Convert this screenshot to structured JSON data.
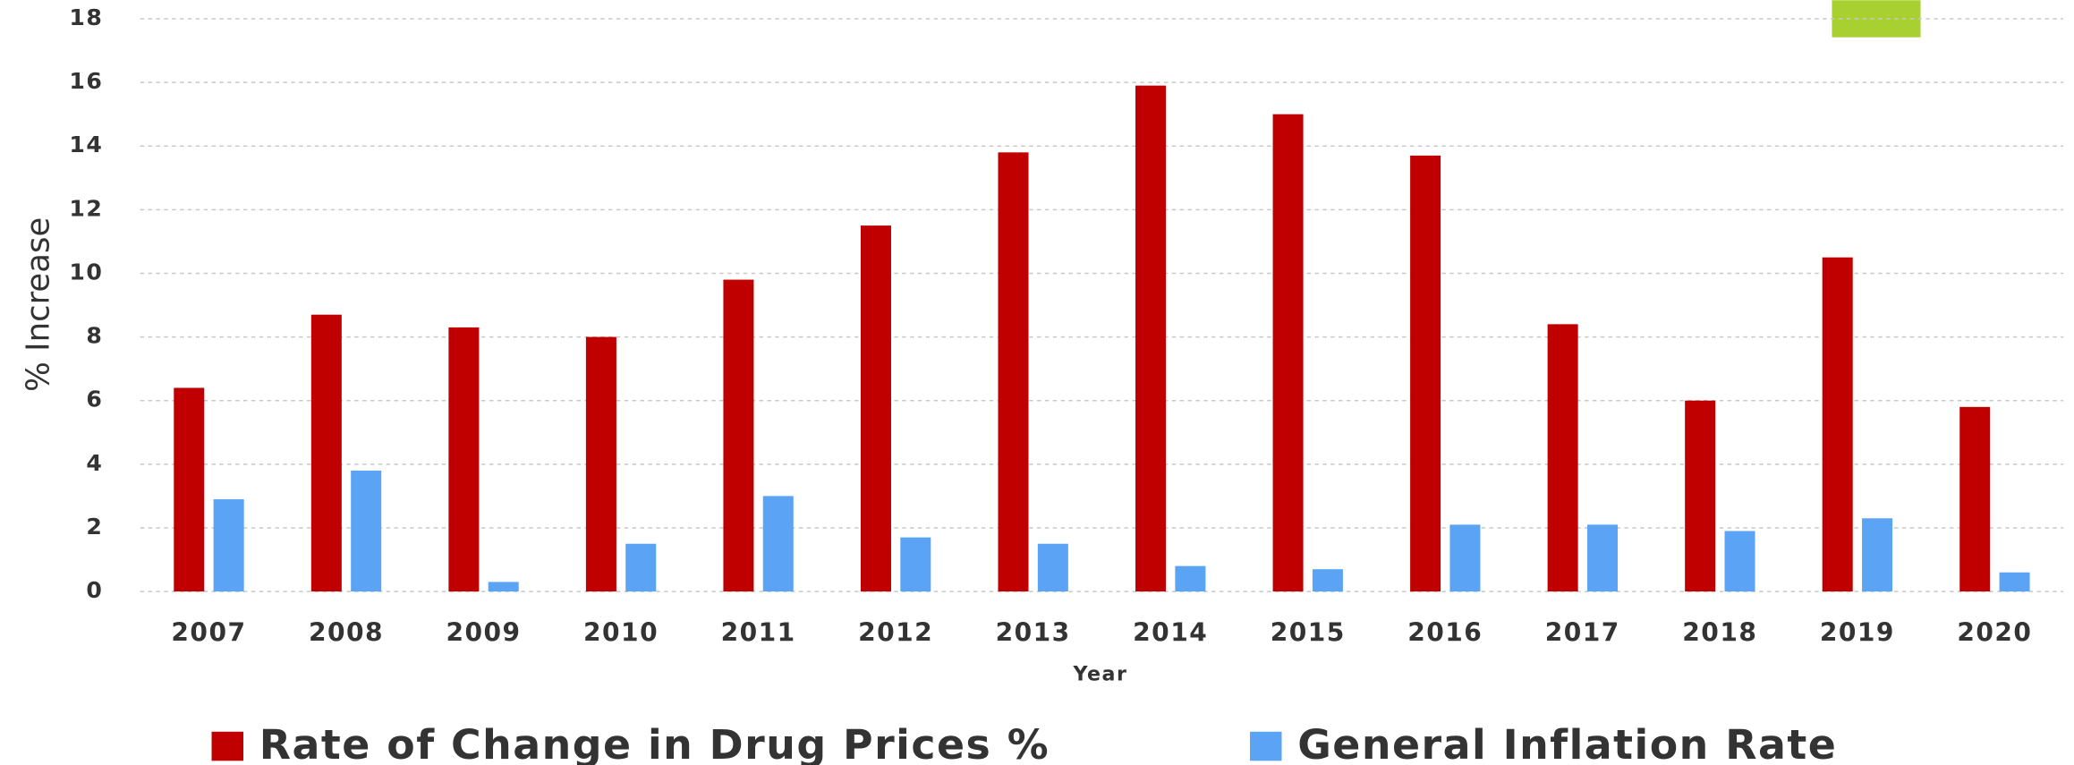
{
  "chart_data": {
    "type": "bar",
    "x_label": "Year",
    "y_label": "% Increase",
    "categories": [
      "2007",
      "2008",
      "2009",
      "2010",
      "2011",
      "2012",
      "2013",
      "2014",
      "2015",
      "2016",
      "2017",
      "2018",
      "2019",
      "2020"
    ],
    "series": [
      {
        "name": "Rate of Change in Drug Prices %",
        "color": "#c00000",
        "values": [
          6.4,
          8.7,
          8.3,
          8.0,
          9.8,
          11.5,
          13.8,
          15.9,
          15.0,
          13.7,
          8.4,
          6.0,
          10.5,
          5.8
        ]
      },
      {
        "name": "General Inflation Rate",
        "color": "#5ba3f5",
        "values": [
          2.9,
          3.8,
          0.3,
          1.5,
          3.0,
          1.7,
          1.5,
          0.8,
          0.7,
          2.1,
          2.1,
          1.9,
          2.3,
          0.6
        ]
      }
    ],
    "ylim": [
      0,
      18
    ],
    "yticks": [
      0,
      2,
      4,
      6,
      8,
      10,
      12,
      14,
      16,
      18
    ],
    "grid": true,
    "legend": "bottom"
  }
}
